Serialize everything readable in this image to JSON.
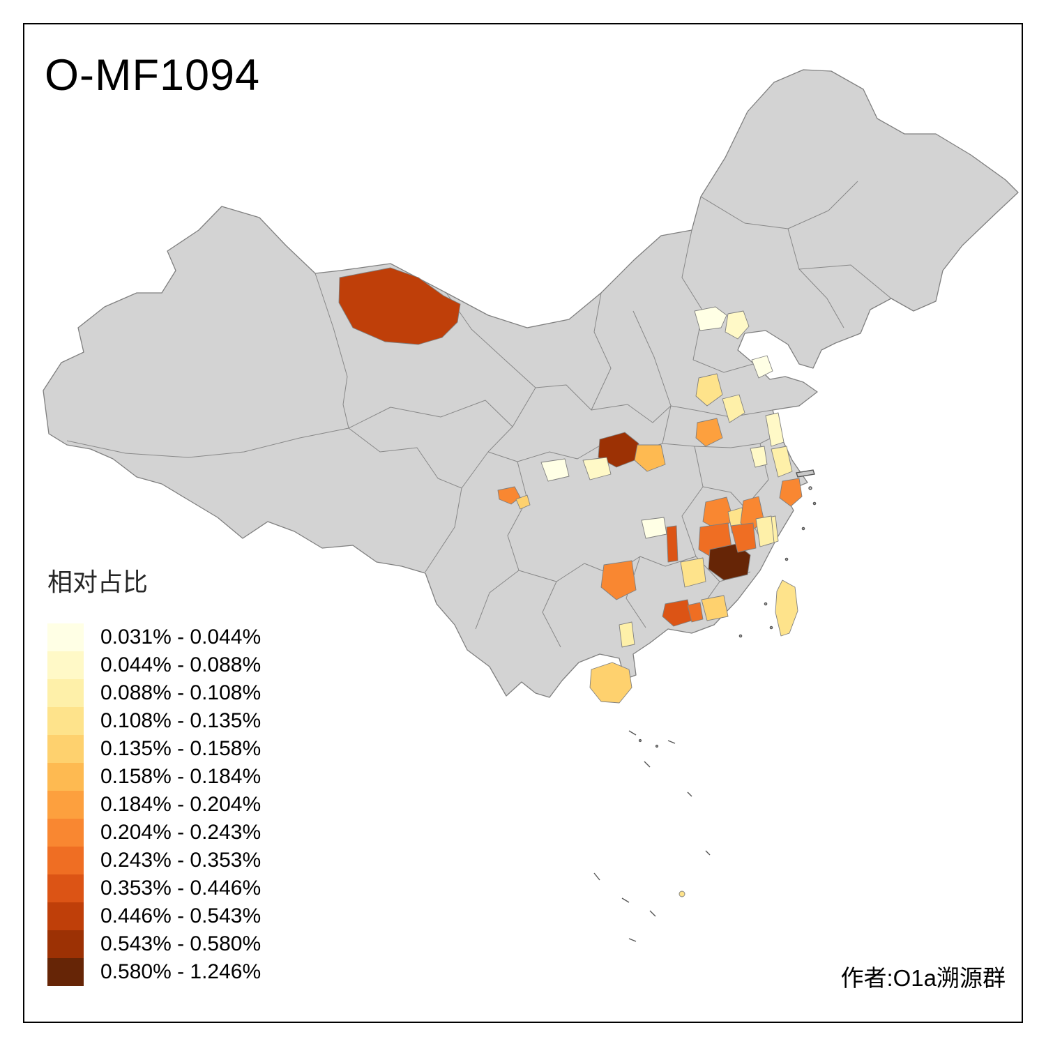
{
  "title": "O-MF1094",
  "author": "作者:O1a溯源群",
  "legend": {
    "title": "相对占比",
    "items": [
      {
        "label": "0.031% - 0.044%",
        "color": "#FFFFE5"
      },
      {
        "label": "0.044% - 0.088%",
        "color": "#FFF9C7"
      },
      {
        "label": "0.088% - 0.108%",
        "color": "#FEF0A9"
      },
      {
        "label": "0.108% - 0.135%",
        "color": "#FEE38B"
      },
      {
        "label": "0.135% - 0.158%",
        "color": "#FED16E"
      },
      {
        "label": "0.158% - 0.184%",
        "color": "#FEBA51"
      },
      {
        "label": "0.184% - 0.204%",
        "color": "#FDA03E"
      },
      {
        "label": "0.204% - 0.243%",
        "color": "#F98731"
      },
      {
        "label": "0.243% - 0.353%",
        "color": "#EF6E23"
      },
      {
        "label": "0.353% - 0.446%",
        "color": "#DC5415"
      },
      {
        "label": "0.446% - 0.543%",
        "color": "#BF3F09"
      },
      {
        "label": "0.543% - 0.580%",
        "color": "#9C3104"
      },
      {
        "label": "0.580% - 1.246%",
        "color": "#662506"
      }
    ]
  },
  "map": {
    "land_fill": "#D3D3D3",
    "boundary_color": "#7F7F7F",
    "background": "#FFFFFF",
    "regions": {
      "alxa": 10,
      "beijing_w": 0,
      "beijing_e": 1,
      "bohai_pale": 0,
      "shanxi_yellow": 3,
      "hebei_s": 2,
      "henan_n": 6,
      "jiangsu_n": 1,
      "jiangsu_mid": 2,
      "shanghai": 7,
      "shiyan": 11,
      "xiangyang": 5,
      "hanzhong": 1,
      "longnan": 0,
      "sichuan_1": 7,
      "sichuan_2": 4,
      "anhui_n": 1,
      "hubei_e": 7,
      "wuhan": 3,
      "anqing": 7,
      "anhui_s": 2,
      "zhangjiajie": 0,
      "hubei_hunan_strip": 9,
      "jiangxi_n": 8,
      "jiangxi_c": 12,
      "jiangxi_e": 8,
      "jiangxi_ne": 2,
      "hunan_c": 7,
      "guangxi_e": 3,
      "pearl_delta": 9,
      "pearl_e": 8,
      "guangdong_e": 4,
      "beihai": 2,
      "hainan": 4,
      "taiwan": 3,
      "pratas": 3
    }
  }
}
